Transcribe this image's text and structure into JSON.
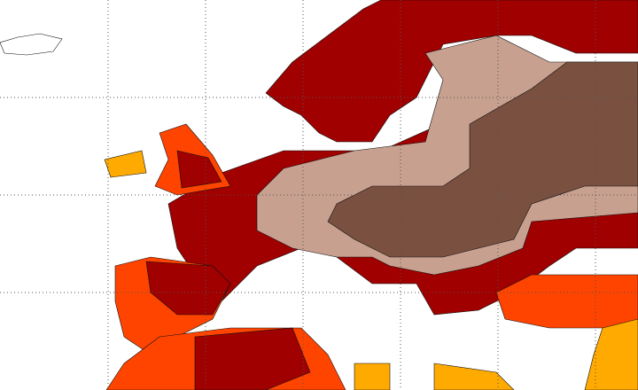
{
  "map": {
    "colors": [
      "#a00000",
      "#ff4400",
      "#ffaa00",
      "#c8a090",
      "#7a5040"
    ]
  }
}
